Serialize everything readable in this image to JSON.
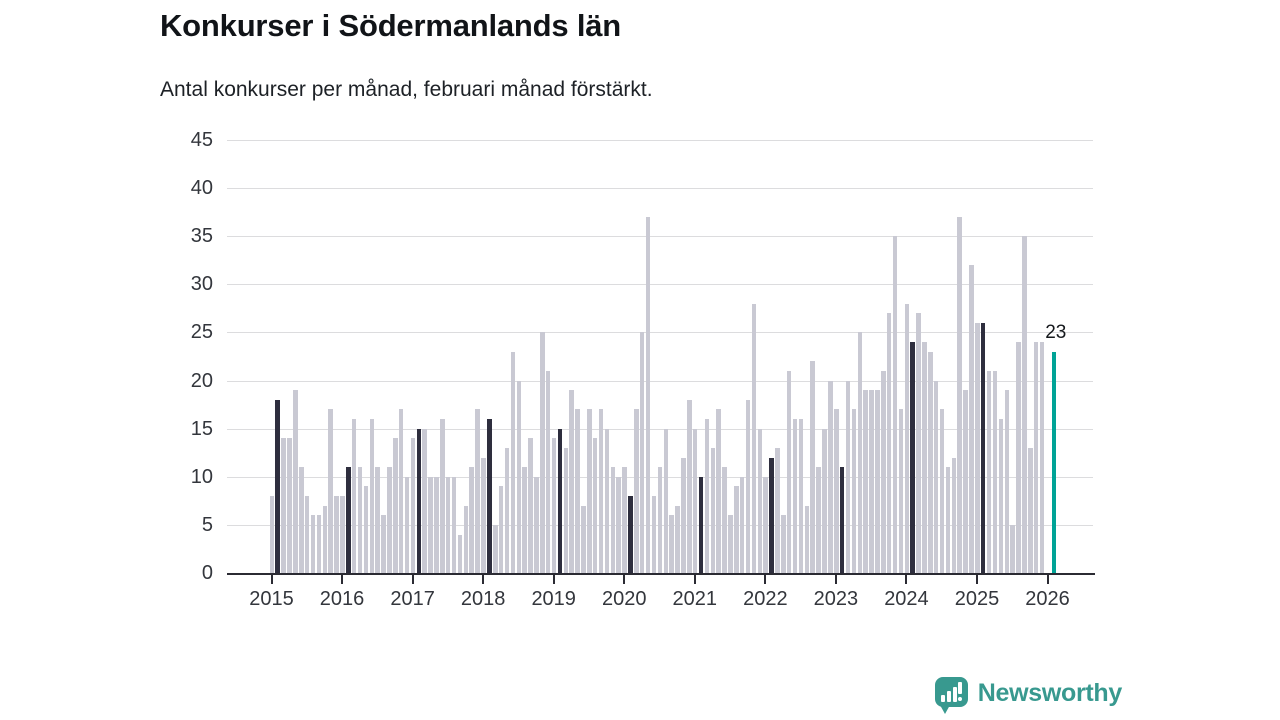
{
  "header": {
    "title": "Konkurser i Södermanlands län",
    "subtitle": "Antal konkurser per månad, februari månad förstärkt."
  },
  "chart_data": {
    "type": "bar",
    "title": "Konkurser i Södermanlands län",
    "subtitle": "Antal konkurser per månad, februari månad förstärkt.",
    "xlabel": "",
    "ylabel": "",
    "ylim": [
      0,
      45
    ],
    "yticks": [
      0,
      5,
      10,
      15,
      20,
      25,
      30,
      35,
      40,
      45
    ],
    "xticks": [
      2015,
      2016,
      2017,
      2018,
      2019,
      2020,
      2021,
      2022,
      2023,
      2024,
      2025,
      2026
    ],
    "grid": "horizontal",
    "start_month": "2015-01",
    "end_month": "2026-02",
    "highlight_rule": "february-bars-dark, latest-bar-teal",
    "values": [
      8,
      18,
      14,
      14,
      19,
      11,
      8,
      6,
      6,
      7,
      17,
      8,
      8,
      11,
      16,
      11,
      9,
      16,
      11,
      6,
      11,
      14,
      17,
      10,
      14,
      15,
      15,
      10,
      10,
      16,
      10,
      10,
      4,
      7,
      11,
      17,
      12,
      16,
      5,
      9,
      13,
      23,
      20,
      11,
      14,
      10,
      25,
      21,
      14,
      15,
      13,
      19,
      17,
      7,
      17,
      14,
      17,
      15,
      11,
      10,
      11,
      8,
      17,
      25,
      37,
      8,
      11,
      15,
      6,
      7,
      12,
      18,
      15,
      10,
      16,
      13,
      17,
      11,
      6,
      9,
      10,
      18,
      28,
      15,
      10,
      12,
      13,
      6,
      21,
      16,
      16,
      7,
      22,
      11,
      15,
      20,
      17,
      11,
      20,
      17,
      25,
      19,
      19,
      19,
      21,
      27,
      35,
      17,
      28,
      24,
      27,
      24,
      23,
      20,
      17,
      11,
      12,
      37,
      19,
      32,
      26,
      26,
      21,
      21,
      16,
      19,
      5,
      24,
      35,
      13,
      24,
      24,
      null,
      23
    ],
    "annotation": {
      "index": 133,
      "text": "23",
      "value": 23
    },
    "colors": {
      "bar": "#c9c9d3",
      "february": "#2e2e3e",
      "latest": "#00a396",
      "grid": "#dcdcde",
      "axis": "#2b2b33",
      "tick_text": "#33363c",
      "text": "#15181c"
    }
  },
  "branding": {
    "logo_text": "Newsworthy",
    "logo_color": "#38998f",
    "logo_icon": "bar-chart-speech-bubble"
  }
}
